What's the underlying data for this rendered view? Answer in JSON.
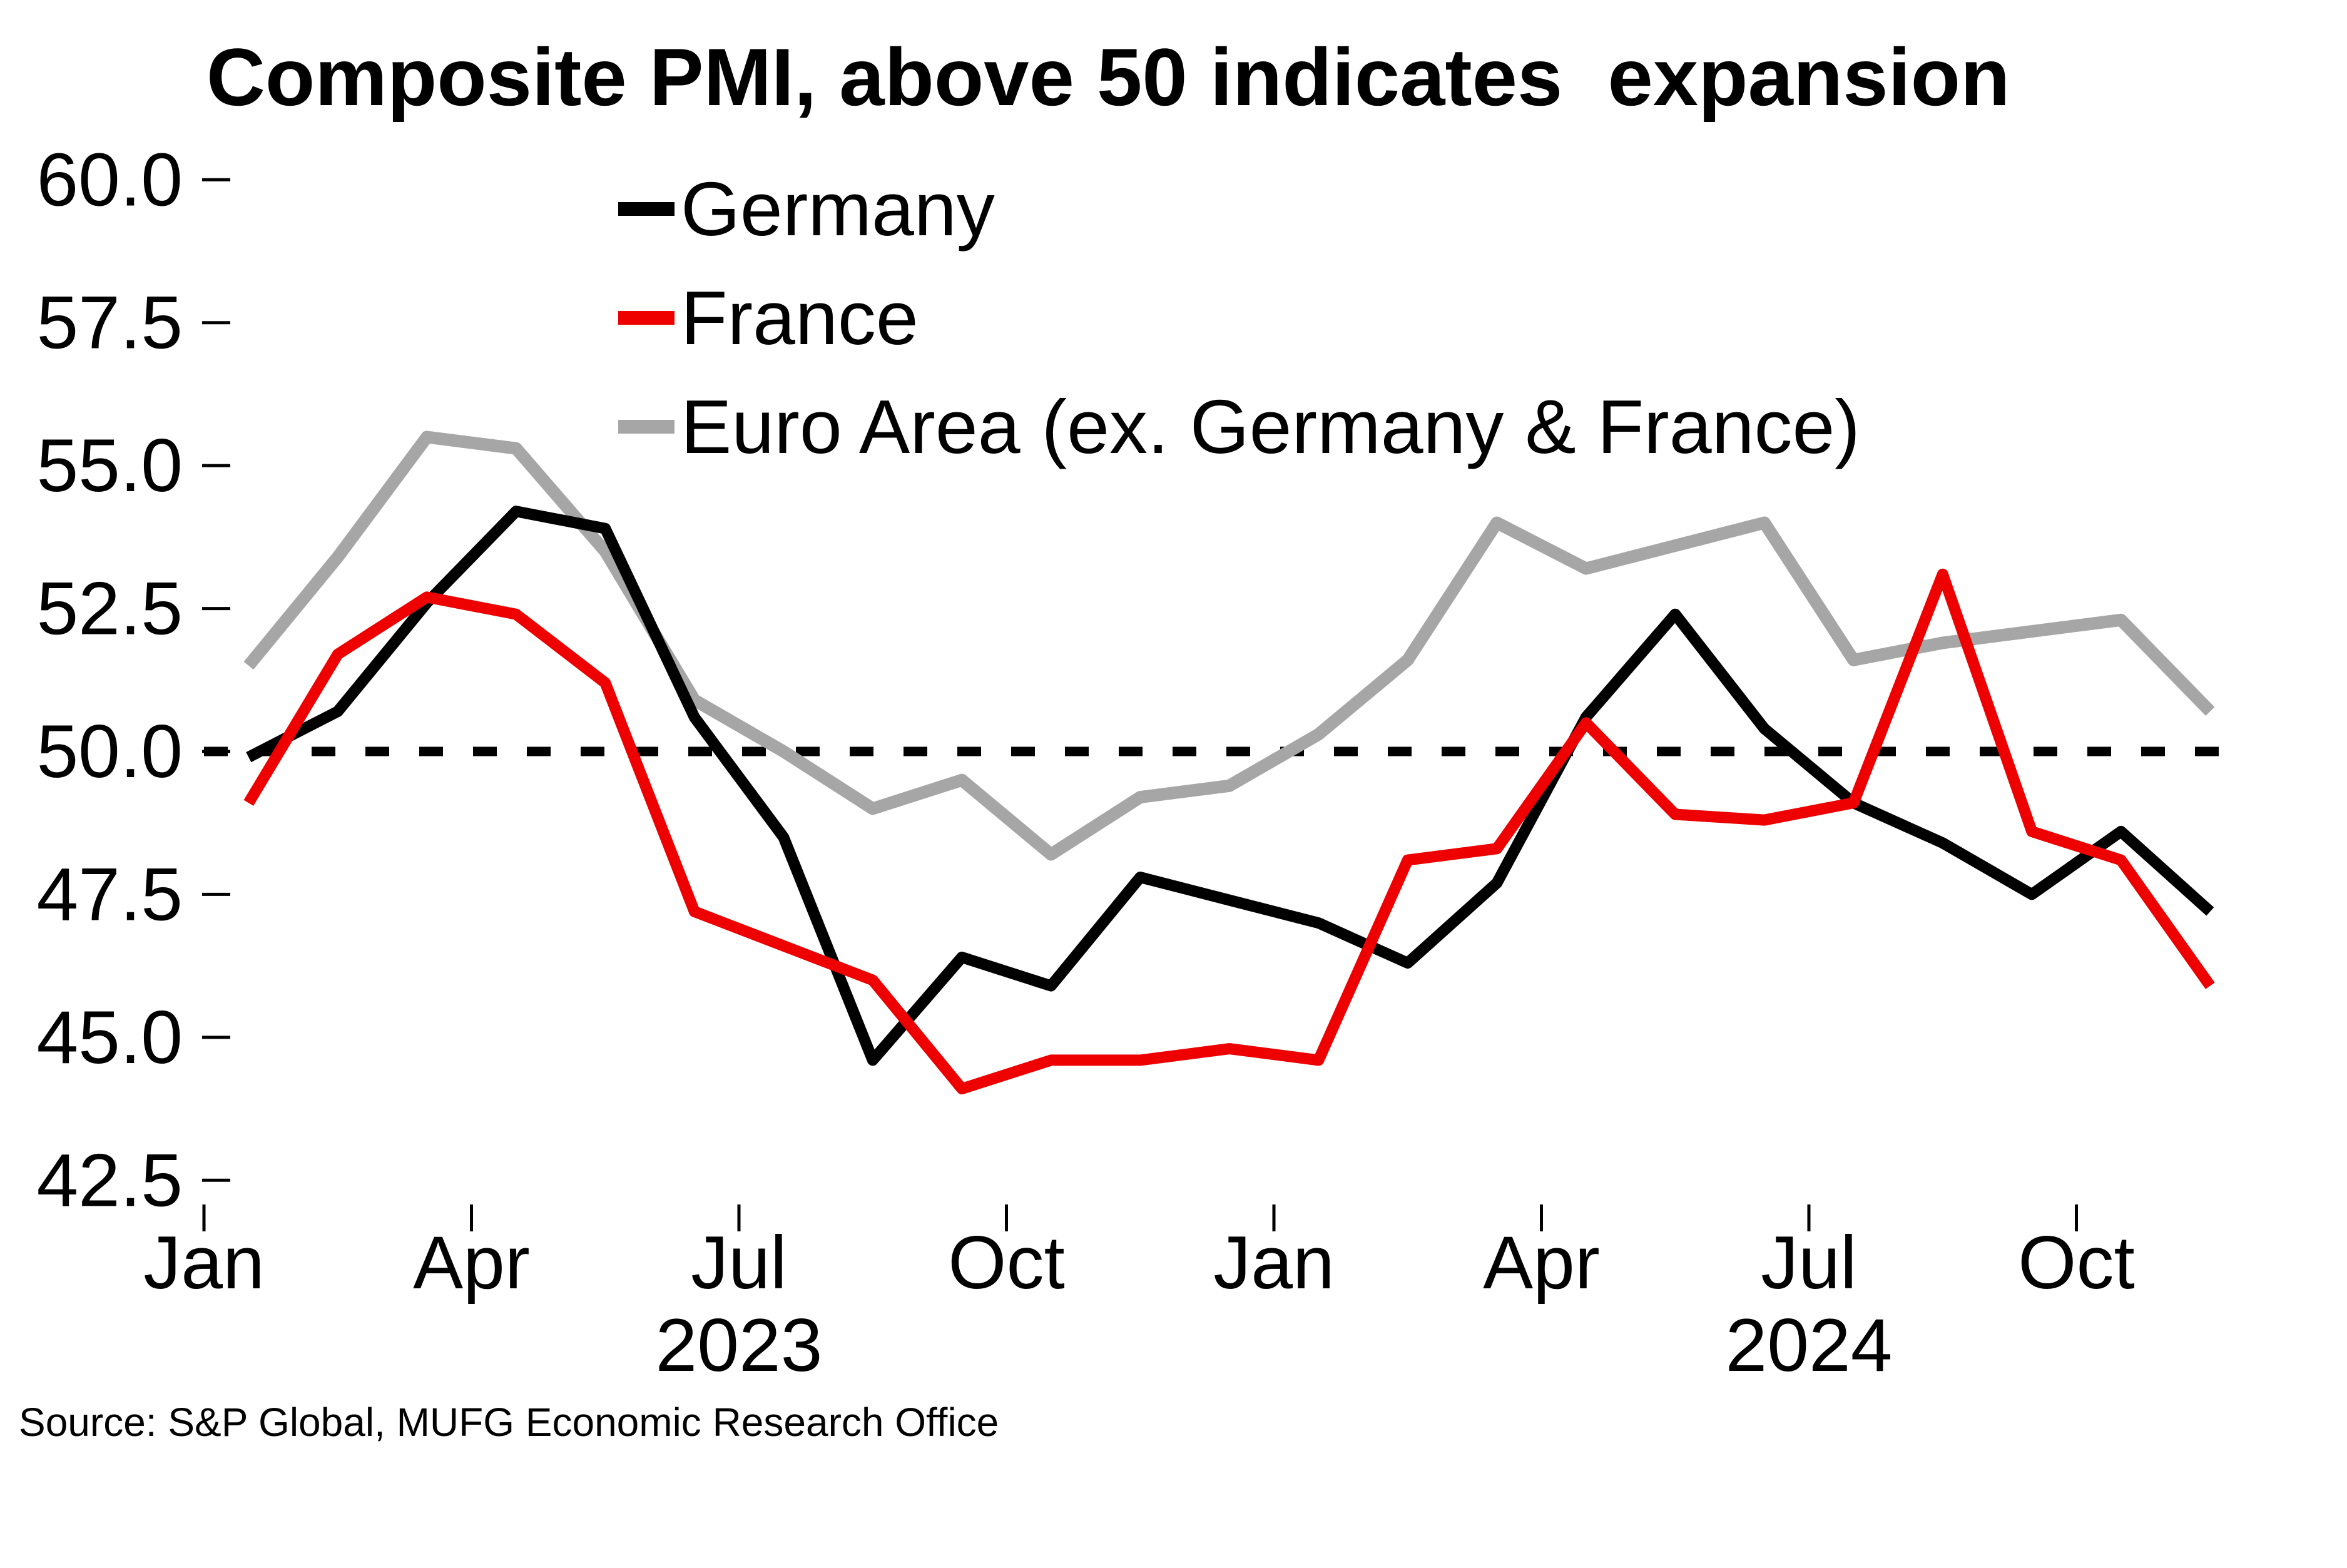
{
  "title": "Composite PMI, above 50 indicates  expansion",
  "source": "Source: S&P Global, MUFG Economic Research Office",
  "chart_data": {
    "type": "line",
    "title": "Composite PMI, above 50 indicates expansion",
    "x": [
      "Jan 2023",
      "Feb 2023",
      "Mar 2023",
      "Apr 2023",
      "May 2023",
      "Jun 2023",
      "Jul 2023",
      "Aug 2023",
      "Sep 2023",
      "Oct 2023",
      "Nov 2023",
      "Dec 2023",
      "Jan 2024",
      "Feb 2024",
      "Mar 2024",
      "Apr 2024",
      "May 2024",
      "Jun 2024",
      "Jul 2024",
      "Aug 2024",
      "Sep 2024",
      "Oct 2024",
      "Nov 2024"
    ],
    "series": [
      {
        "name": "Germany",
        "color": "#000000",
        "values": [
          49.9,
          50.7,
          52.6,
          54.2,
          53.9,
          50.6,
          48.5,
          44.6,
          46.4,
          45.9,
          47.8,
          47.4,
          47.0,
          46.3,
          47.7,
          50.6,
          52.4,
          50.4,
          49.1,
          48.4,
          47.5,
          48.6,
          47.2
        ]
      },
      {
        "name": "France",
        "color": "#ee0000",
        "values": [
          49.1,
          51.7,
          52.7,
          52.4,
          51.2,
          47.2,
          46.6,
          46.0,
          44.1,
          44.6,
          44.6,
          44.8,
          44.6,
          48.1,
          48.3,
          50.5,
          48.9,
          48.8,
          49.1,
          53.1,
          48.6,
          48.1,
          45.9
        ]
      },
      {
        "name": "Euro Area (ex. Germany & France)",
        "color": "#a6a6a6",
        "values": [
          51.5,
          53.4,
          55.5,
          55.3,
          53.5,
          50.9,
          50.0,
          49.0,
          49.5,
          48.2,
          49.2,
          49.4,
          50.3,
          51.6,
          54.0,
          53.2,
          53.6,
          54.0,
          51.6,
          51.9,
          52.1,
          52.3,
          50.7
        ]
      }
    ],
    "reference_line": {
      "value": 50.0,
      "style": "dashed",
      "color": "#000000"
    },
    "ylim": [
      42.5,
      60.0
    ],
    "y_tick_values": [
      60.0,
      57.5,
      55.0,
      52.5,
      50.0,
      47.5,
      45.0,
      42.5
    ],
    "y_tick_labels": [
      "60.0",
      "57.5",
      "55.0",
      "52.5",
      "50.0",
      "47.5",
      "45.0",
      "42.5"
    ],
    "x_tick_labels": [
      "Jan",
      "Apr",
      "Jul",
      "Oct",
      "Jan",
      "Apr",
      "Jul",
      "Oct"
    ],
    "year_labels": [
      "2023",
      "2024"
    ],
    "legend_position": "top-center-inside",
    "grid": false,
    "xlabel": "",
    "ylabel": ""
  }
}
